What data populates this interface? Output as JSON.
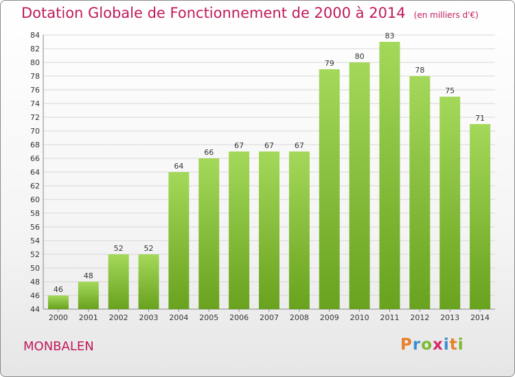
{
  "title": "Dotation Globale de Fonctionnement de 2000 à 2014",
  "unit_note": "(en milliers d'€)",
  "commune": "MONBALEN",
  "logo": {
    "letters": [
      "P",
      "r",
      "o",
      "x",
      "i",
      "t",
      "i"
    ],
    "colors": [
      "#e8802a",
      "#3a8fd0",
      "#7ab830",
      "#d42a6a",
      "#3a8fd0",
      "#e8802a",
      "#7ab830"
    ]
  },
  "colors": {
    "bar_light": "#a4d85a",
    "bar_dark": "#68a21e",
    "accent": "#c0195c"
  },
  "chart_data": {
    "type": "bar",
    "categories": [
      "2000",
      "2001",
      "2002",
      "2003",
      "2004",
      "2005",
      "2006",
      "2007",
      "2008",
      "2009",
      "2010",
      "2011",
      "2012",
      "2013",
      "2014"
    ],
    "values": [
      46,
      48,
      52,
      52,
      64,
      66,
      67,
      67,
      67,
      79,
      80,
      83,
      78,
      75,
      71
    ],
    "ylim": [
      44,
      84
    ],
    "yticks": [
      44,
      46,
      48,
      50,
      52,
      54,
      56,
      58,
      60,
      62,
      64,
      66,
      68,
      70,
      72,
      74,
      76,
      78,
      80,
      82,
      84
    ],
    "grid": true,
    "data_labels": true
  }
}
